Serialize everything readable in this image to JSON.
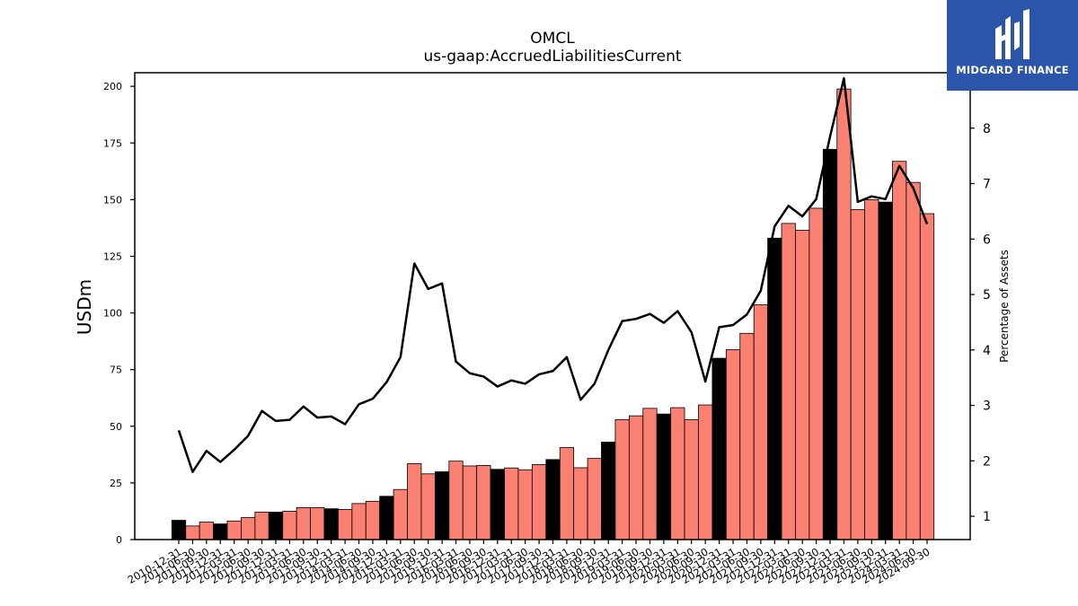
{
  "chart_data": {
    "type": "bar",
    "title": "OMCL",
    "subtitle": "us-gaap:AccruedLiabilitiesCurrent",
    "ylabel": "USDm",
    "y2label": "Percentage of Assets",
    "ylim": [
      0,
      206
    ],
    "y2lim": [
      0.58,
      9.0
    ],
    "yticks": [
      0,
      25,
      50,
      75,
      100,
      125,
      150,
      175,
      200
    ],
    "y2ticks": [
      1,
      2,
      3,
      4,
      5,
      6,
      7,
      8
    ],
    "grid": false,
    "legend": "none",
    "colors": {
      "annual": "#000000",
      "quarterly": "#fa8072",
      "line": "#000000",
      "edge": "#000000"
    },
    "categories": [
      "2010-12-31",
      "2011-06-30",
      "2011-09-30",
      "2011-12-31",
      "2012-03-31",
      "2012-06-30",
      "2012-09-30",
      "2012-12-31",
      "2013-03-31",
      "2013-06-30",
      "2013-09-30",
      "2013-12-31",
      "2014-03-31",
      "2014-06-30",
      "2014-09-30",
      "2014-12-31",
      "2015-03-31",
      "2015-06-30",
      "2015-09-30",
      "2015-12-31",
      "2016-03-31",
      "2016-06-30",
      "2016-09-30",
      "2016-12-31",
      "2017-03-31",
      "2017-06-30",
      "2017-09-30",
      "2017-12-31",
      "2018-03-31",
      "2018-06-30",
      "2018-09-30",
      "2018-12-31",
      "2019-03-31",
      "2019-06-30",
      "2019-09-30",
      "2019-12-31",
      "2020-03-31",
      "2020-06-30",
      "2020-09-30",
      "2020-12-31",
      "2021-03-31",
      "2021-06-30",
      "2021-09-30",
      "2021-12-31",
      "2022-03-31",
      "2022-06-30",
      "2022-09-30",
      "2022-12-31",
      "2023-03-31",
      "2023-06-30",
      "2023-09-30",
      "2023-12-31",
      "2024-03-31",
      "2024-06-30",
      "2024-09-30"
    ],
    "xtick_labels": [
      "2010-12-31",
      "2011-06-30",
      "2011-09-30",
      "2011-12-31",
      "2012-03-31",
      "2012-06-30",
      "2012-09-30",
      "2012-12-31",
      "2013-03-31",
      "2013-06-30",
      "2013-09-30",
      "2013-12-31",
      "2014-03-31",
      "2014-06-30",
      "2014-09-30",
      "2014-12-31",
      "2015-03-31",
      "2015-06-30",
      "2015-09-30",
      "2015-12-31",
      "2016-03-31",
      "2016-06-30",
      "2016-09-30",
      "2016-12-31",
      "2017-03-31",
      "2017-06-30",
      "2017-09-30",
      "2017-12-31",
      "2018-03-31",
      "2018-06-30",
      "2018-09-30",
      "2018-12-31",
      "2019-03-31",
      "2019-06-30",
      "2019-09-30",
      "2019-12-31",
      "2020-03-31",
      "2020-06-30",
      "2020-09-30",
      "2020-12-31",
      "2021-03-31",
      "2021-06-30",
      "2021-09-30",
      "2021-12-31",
      "2022-03-31",
      "2022-06-30",
      "2022-09-30",
      "2022-12-31",
      "2023-03-31",
      "2023-06-30",
      "2023-09-30",
      "2023-12-31",
      "2024-03-31",
      "2024-06-30",
      "2024-09-30"
    ],
    "series": [
      {
        "type": "bar",
        "values": [
          8.5,
          6.0,
          7.7,
          6.9,
          8.2,
          9.7,
          12.1,
          12.1,
          12.5,
          14.1,
          14.1,
          13.6,
          13.3,
          15.9,
          16.9,
          19.1,
          22.1,
          33.5,
          29.0,
          29.9,
          34.6,
          32.5,
          32.7,
          31.0,
          31.6,
          30.8,
          33.1,
          35.3,
          40.6,
          31.7,
          35.8,
          43.0,
          52.9,
          54.6,
          57.9,
          55.4,
          58.2,
          52.9,
          59.4,
          80.0,
          83.8,
          91.0,
          103.6,
          133.0,
          139.5,
          136.5,
          146.2,
          172.2,
          198.8,
          145.6,
          150.0,
          148.9,
          166.9,
          157.6,
          143.8
        ],
        "annual": [
          true,
          false,
          false,
          true,
          false,
          false,
          false,
          true,
          false,
          false,
          false,
          true,
          false,
          false,
          false,
          true,
          false,
          false,
          false,
          true,
          false,
          false,
          false,
          true,
          false,
          false,
          false,
          true,
          false,
          false,
          false,
          true,
          false,
          false,
          false,
          true,
          false,
          false,
          false,
          true,
          false,
          false,
          false,
          true,
          false,
          false,
          false,
          true,
          false,
          false,
          false,
          true,
          false,
          false,
          false
        ]
      },
      {
        "type": "line",
        "axis": "right",
        "values": [
          2.55,
          1.8,
          2.18,
          1.98,
          2.2,
          2.45,
          2.9,
          2.72,
          2.74,
          2.98,
          2.78,
          2.8,
          2.66,
          3.02,
          3.12,
          3.42,
          3.87,
          5.56,
          5.1,
          5.2,
          3.79,
          3.58,
          3.52,
          3.34,
          3.45,
          3.39,
          3.56,
          3.62,
          3.87,
          3.1,
          3.39,
          4.0,
          4.52,
          4.56,
          4.65,
          4.49,
          4.7,
          4.32,
          3.43,
          4.41,
          4.45,
          4.64,
          5.07,
          6.23,
          6.6,
          6.41,
          6.72,
          7.85,
          8.9,
          6.67,
          6.77,
          6.72,
          7.32,
          6.92,
          6.27
        ]
      }
    ]
  },
  "logo": {
    "text": "MIDGARD FINANCE"
  }
}
